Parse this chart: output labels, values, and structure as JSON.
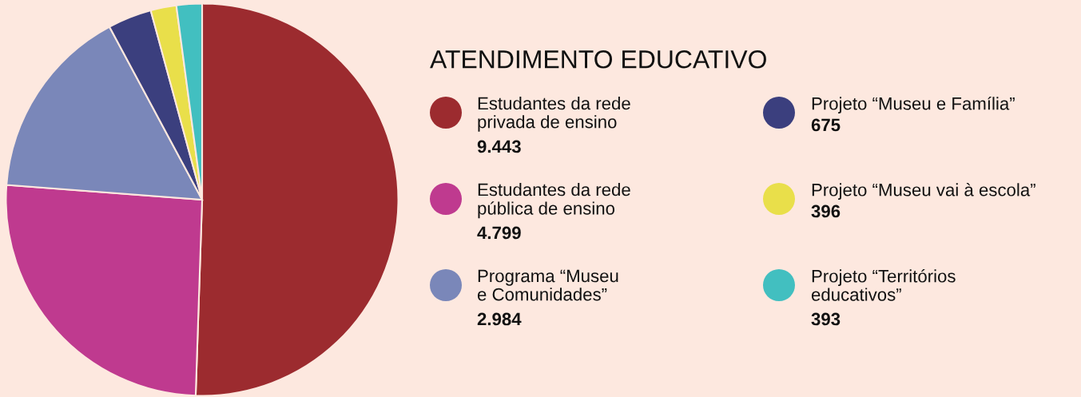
{
  "chart_data": {
    "type": "pie",
    "title": "ATENDIMENTO EDUCATIVO",
    "categories": [
      "Estudantes da rede\nprivada de ensino",
      "Estudantes da rede\npública de ensino",
      "Programa “Museu\ne Comunidades”",
      "Projeto “Museu e Família”",
      "Projeto “Museu vai à escola”",
      "Projeto “Territórios\neducativos”"
    ],
    "values": [
      9443,
      4799,
      2984,
      675,
      396,
      393
    ],
    "value_labels": [
      "9.443",
      "4.799",
      "2.984",
      "675",
      "396",
      "393"
    ],
    "colors": [
      "#9c2b2f",
      "#bf3a8f",
      "#7a87b9",
      "#3b3f7e",
      "#e9df4a",
      "#42bfc0"
    ],
    "legend": "right"
  }
}
